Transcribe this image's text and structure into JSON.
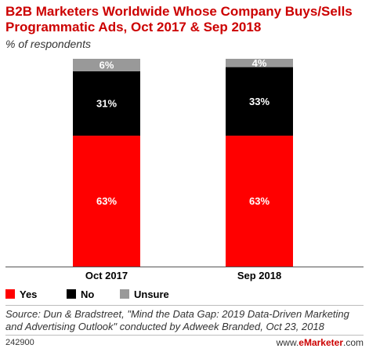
{
  "chart_data": {
    "type": "bar",
    "stacked": true,
    "title": "B2B Marketers Worldwide Whose Company Buys/Sells Programmatic Ads, Oct 2017 & Sep 2018",
    "subtitle": "% of respondents",
    "categories": [
      "Oct 2017",
      "Sep 2018"
    ],
    "series": [
      {
        "name": "Yes",
        "color": "#ff0000",
        "values": [
          63,
          63
        ],
        "labels": [
          "63%",
          "63%"
        ]
      },
      {
        "name": "No",
        "color": "#000000",
        "values": [
          31,
          33
        ],
        "labels": [
          "31%",
          "33%"
        ]
      },
      {
        "name": "Unsure",
        "color": "#999999",
        "values": [
          6,
          4
        ],
        "labels": [
          "6%",
          "4%"
        ]
      }
    ],
    "ylim": [
      0,
      100
    ],
    "grid": false,
    "legend": "bottom-left"
  },
  "source": "Source: Dun & Bradstreet, \"Mind the Data Gap: 2019 Data-Driven Marketing and Advertising Outlook\" conducted by Adweek Branded, Oct 23, 2018",
  "footer": {
    "id": "242900",
    "brand_prefix": "www.",
    "brand_name": "eMarketer",
    "brand_suffix": ".com"
  }
}
